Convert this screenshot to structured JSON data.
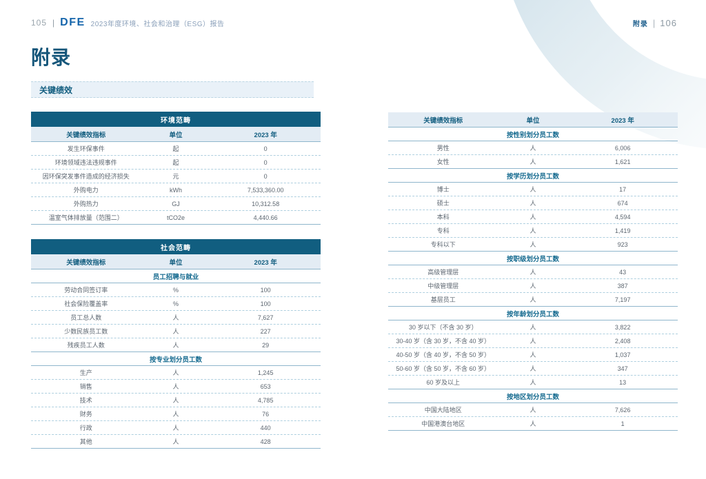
{
  "page": {
    "header_left": {
      "page_num": "105",
      "separator": "|",
      "logo": "DFE",
      "report_title": "2023年度环境、社会和治理（ESG）报告"
    },
    "header_right": {
      "section": "附录",
      "separator": "|",
      "page_num": "106"
    },
    "title": "附录",
    "section_banner": "关键绩效"
  },
  "colors": {
    "banner_bg": "#115e80",
    "header_row_bg": "#e3ecf4",
    "accent_blue": "#135e80",
    "logo_blue": "#1565ab",
    "dashed_line": "#aecfdf",
    "solid_line": "#8fb6cc"
  },
  "tables": [
    {
      "id": "tbl-env",
      "banner": "环境范畴",
      "columns": [
        "关键绩效指标",
        "单位",
        "2023 年"
      ],
      "rows": [
        {
          "type": "data",
          "label": "发生环保事件",
          "unit": "起",
          "value": "0"
        },
        {
          "type": "data",
          "label": "环境领域违法违规事件",
          "unit": "起",
          "value": "0"
        },
        {
          "type": "data",
          "label": "因环保突发事件造成的经济损失",
          "unit": "元",
          "value": "0"
        },
        {
          "type": "data",
          "label": "外购电力",
          "unit": "kWh",
          "value": "7,533,360.00"
        },
        {
          "type": "data",
          "label": "外购热力",
          "unit": "GJ",
          "value": "10,312.58"
        },
        {
          "type": "data",
          "label": "温室气体排放量（范围二）",
          "unit": "tCO2e",
          "value": "4,440.66"
        }
      ]
    },
    {
      "id": "tbl-social",
      "banner": "社会范畴",
      "columns": [
        "关键绩效指标",
        "单位",
        "2023 年"
      ],
      "rows": [
        {
          "type": "section",
          "label": "员工招聘与就业"
        },
        {
          "type": "data",
          "label": "劳动合同签订率",
          "unit": "%",
          "value": "100"
        },
        {
          "type": "data",
          "label": "社会保险覆盖率",
          "unit": "%",
          "value": "100"
        },
        {
          "type": "data",
          "label": "员工总人数",
          "unit": "人",
          "value": "7,627"
        },
        {
          "type": "data",
          "label": "少数民族员工数",
          "unit": "人",
          "value": "227"
        },
        {
          "type": "data",
          "label": "残疾员工人数",
          "unit": "人",
          "value": "29"
        },
        {
          "type": "section",
          "label": "按专业划分员工数"
        },
        {
          "type": "data",
          "label": "生产",
          "unit": "人",
          "value": "1,245"
        },
        {
          "type": "data",
          "label": "销售",
          "unit": "人",
          "value": "653"
        },
        {
          "type": "data",
          "label": "技术",
          "unit": "人",
          "value": "4,785"
        },
        {
          "type": "data",
          "label": "财务",
          "unit": "人",
          "value": "76"
        },
        {
          "type": "data",
          "label": "行政",
          "unit": "人",
          "value": "440"
        },
        {
          "type": "data",
          "label": "其他",
          "unit": "人",
          "value": "428"
        }
      ]
    },
    {
      "id": "tbl-right",
      "banner": null,
      "columns": [
        "关键绩效指标",
        "单位",
        "2023 年"
      ],
      "rows": [
        {
          "type": "section",
          "label": "按性别划分员工数"
        },
        {
          "type": "data",
          "label": "男性",
          "unit": "人",
          "value": "6,006"
        },
        {
          "type": "data",
          "label": "女性",
          "unit": "人",
          "value": "1,621"
        },
        {
          "type": "section",
          "label": "按学历划分员工数"
        },
        {
          "type": "data",
          "label": "博士",
          "unit": "人",
          "value": "17"
        },
        {
          "type": "data",
          "label": "硕士",
          "unit": "人",
          "value": "674"
        },
        {
          "type": "data",
          "label": "本科",
          "unit": "人",
          "value": "4,594"
        },
        {
          "type": "data",
          "label": "专科",
          "unit": "人",
          "value": "1,419"
        },
        {
          "type": "data",
          "label": "专科以下",
          "unit": "人",
          "value": "923"
        },
        {
          "type": "section",
          "label": "按职级划分员工数"
        },
        {
          "type": "data",
          "label": "高级管理层",
          "unit": "人",
          "value": "43"
        },
        {
          "type": "data",
          "label": "中级管理层",
          "unit": "人",
          "value": "387"
        },
        {
          "type": "data",
          "label": "基层员工",
          "unit": "人",
          "value": "7,197"
        },
        {
          "type": "section",
          "label": "按年龄划分员工数"
        },
        {
          "type": "data",
          "label": "30 岁以下（不含 30 岁）",
          "unit": "人",
          "value": "3,822"
        },
        {
          "type": "data",
          "label": "30-40 岁（含 30 岁，不含 40 岁）",
          "unit": "人",
          "value": "2,408"
        },
        {
          "type": "data",
          "label": "40-50 岁（含 40 岁，不含 50 岁）",
          "unit": "人",
          "value": "1,037"
        },
        {
          "type": "data",
          "label": "50-60 岁（含 50 岁，不含 60 岁）",
          "unit": "人",
          "value": "347"
        },
        {
          "type": "data",
          "label": "60 岁及以上",
          "unit": "人",
          "value": "13"
        },
        {
          "type": "section",
          "label": "按地区划分员工数"
        },
        {
          "type": "data",
          "label": "中国大陆地区",
          "unit": "人",
          "value": "7,626"
        },
        {
          "type": "data",
          "label": "中国港澳台地区",
          "unit": "人",
          "value": "1"
        }
      ]
    }
  ]
}
